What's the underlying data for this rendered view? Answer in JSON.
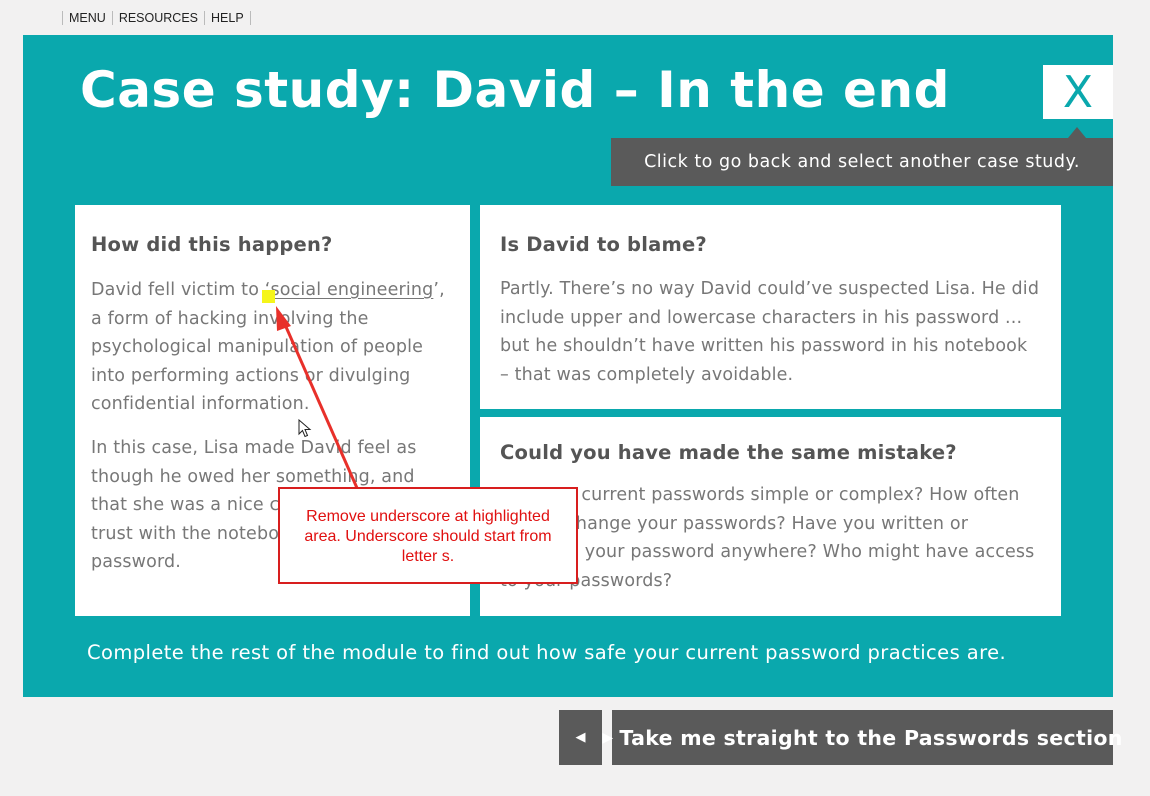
{
  "nav": {
    "items": [
      "MENU",
      "RESOURCES",
      "HELP"
    ]
  },
  "header": {
    "title": "Case study: David – In the end",
    "close_label": "X",
    "tooltip": "Click to go back and select another case study."
  },
  "cards": {
    "how": {
      "heading": "How did this happen?",
      "p1_before": "David fell victim to ",
      "p1_link": "‘social engineering",
      "p1_after": "’, a form of hacking involving the psychological manipulation of people into performing actions or divulging confidential information.",
      "p2": "In this case, Lisa made David feel as though he owed her something, and that she was a nice colleague he could trust with the notebook containing his password."
    },
    "blame": {
      "heading": "Is David to blame?",
      "text": "Partly. There’s no way David could’ve suspected Lisa. He did include upper and lowercase characters in his password ... but he shouldn’t have written his password in his notebook – that was completely avoidable."
    },
    "mistake": {
      "heading": "Could you have made the same mistake?",
      "text": "Are your current passwords simple or complex? How often do you change your passwords? Have you written or recorded your password anywhere? Who might have access to your passwords?"
    }
  },
  "footer_text": "Complete the rest of the module to find out how safe your current password practices are.",
  "buttons": {
    "back_icon": "◀",
    "next_label": "Take me straight to the Passwords section",
    "next_icon": "▶"
  },
  "annotation": {
    "text": "Remove underscore at highlighted area. Underscore should start from letter s.",
    "color": "#d81e1e"
  },
  "colors": {
    "panel": "#0aa8ad",
    "button": "#5a5a5a",
    "highlight": "#f5f51a"
  }
}
